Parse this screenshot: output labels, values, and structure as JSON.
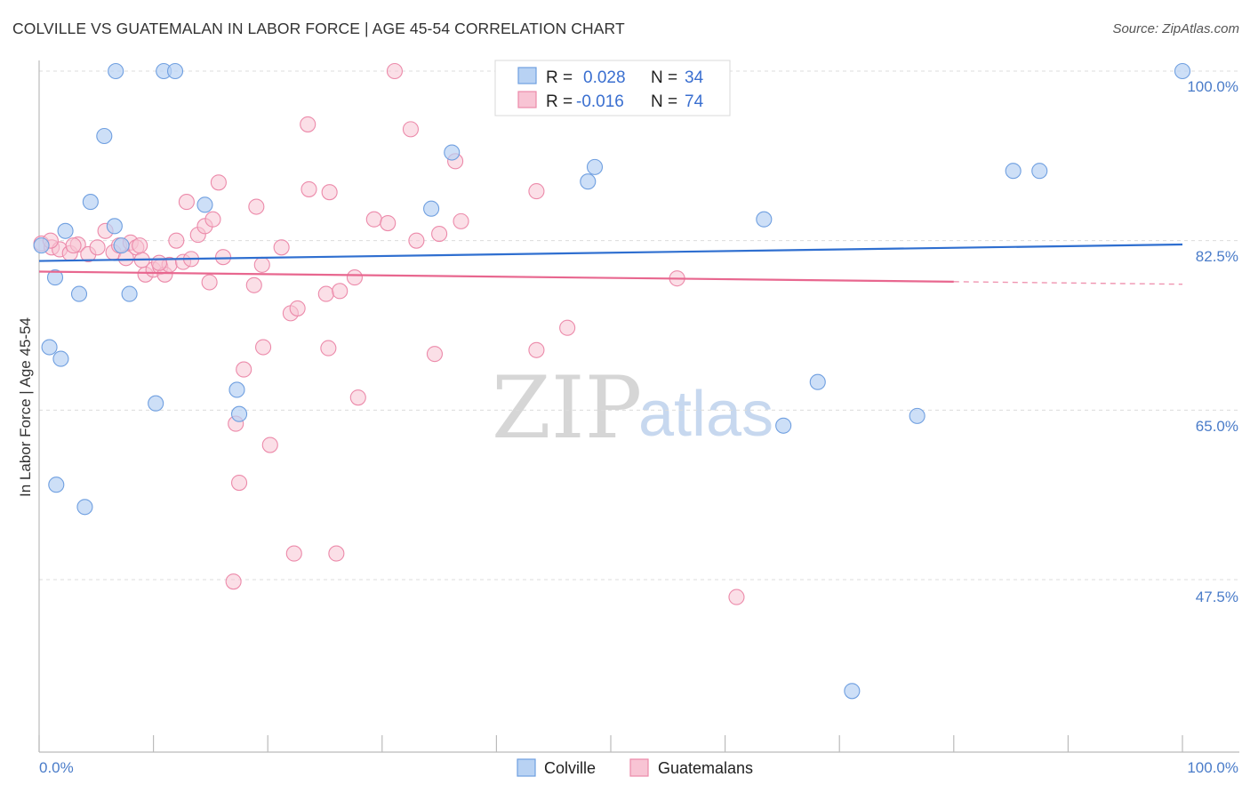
{
  "title": "COLVILLE VS GUATEMALAN IN LABOR FORCE | AGE 45-54 CORRELATION CHART",
  "source": "Source: ZipAtlas.com",
  "watermark": {
    "zip": "ZIP",
    "atlas": "atlas"
  },
  "colors": {
    "colville_fill": "#b8d2f3",
    "colville_stroke": "#6f9fe0",
    "colville_line": "#2f6fd0",
    "guatemalan_fill": "#f8c4d4",
    "guatemalan_stroke": "#ec8aaa",
    "guatemalan_line": "#e8678f",
    "axis_text": "#4a7cc9",
    "grid": "#dcdcdc"
  },
  "legend_box": {
    "rows": [
      {
        "r_label": "R =",
        "r_value": "0.028",
        "n_label": "N =",
        "n_value": "34"
      },
      {
        "r_label": "R =",
        "r_value": "-0.016",
        "n_label": "N =",
        "n_value": "74"
      }
    ]
  },
  "bottom_legend": [
    "Colville",
    "Guatemalans"
  ],
  "chart_data": {
    "type": "scatter",
    "xlabel": "",
    "ylabel": "In Labor Force | Age 45-54",
    "xlim": [
      0,
      100
    ],
    "ylim": [
      31,
      102
    ],
    "x_tick_labels": {
      "left": "0.0%",
      "right": "100.0%"
    },
    "y_ticks": [
      {
        "value": 100.0,
        "label": "100.0%"
      },
      {
        "value": 82.5,
        "label": "82.5%"
      },
      {
        "value": 65.0,
        "label": "65.0%"
      },
      {
        "value": 47.5,
        "label": "47.5%"
      }
    ],
    "series": [
      {
        "name": "Colville",
        "trend": {
          "x": [
            0,
            100
          ],
          "y": [
            80.4,
            82.1
          ]
        },
        "points": [
          [
            0.2,
            82.0
          ],
          [
            2.3,
            83.5
          ],
          [
            1.4,
            78.7
          ],
          [
            3.5,
            77.0
          ],
          [
            0.9,
            71.5
          ],
          [
            1.9,
            70.3
          ],
          [
            7.2,
            82.0
          ],
          [
            6.6,
            84.0
          ],
          [
            4.5,
            86.5
          ],
          [
            5.7,
            93.3
          ],
          [
            6.7,
            100.0
          ],
          [
            10.9,
            100.0
          ],
          [
            11.9,
            100.0
          ],
          [
            7.9,
            77.0
          ],
          [
            10.2,
            65.7
          ],
          [
            14.5,
            86.2
          ],
          [
            17.3,
            67.1
          ],
          [
            17.5,
            64.6
          ],
          [
            1.5,
            57.3
          ],
          [
            4.0,
            55.0
          ],
          [
            34.3,
            85.8
          ],
          [
            36.1,
            91.6
          ],
          [
            46.0,
            100.0
          ],
          [
            46.1,
            100.0
          ],
          [
            48.0,
            88.6
          ],
          [
            48.6,
            90.1
          ],
          [
            63.4,
            84.7
          ],
          [
            65.1,
            63.4
          ],
          [
            68.1,
            67.9
          ],
          [
            71.1,
            36.0
          ],
          [
            76.8,
            64.4
          ],
          [
            85.2,
            89.7
          ],
          [
            87.5,
            89.7
          ],
          [
            100.0,
            100.0
          ]
        ]
      },
      {
        "name": "Guatemalans",
        "trend": {
          "x": [
            0,
            100
          ],
          "y": [
            79.3,
            78.0
          ],
          "solid_until": 80
        },
        "points": [
          [
            0.2,
            82.2
          ],
          [
            1.1,
            81.8
          ],
          [
            1.8,
            81.6
          ],
          [
            2.7,
            81.2
          ],
          [
            3.4,
            82.1
          ],
          [
            4.3,
            81.1
          ],
          [
            5.1,
            81.8
          ],
          [
            5.8,
            83.5
          ],
          [
            6.5,
            81.3
          ],
          [
            7.0,
            82.0
          ],
          [
            7.6,
            80.7
          ],
          [
            8.0,
            82.3
          ],
          [
            8.5,
            81.8
          ],
          [
            9.0,
            80.5
          ],
          [
            9.3,
            79.0
          ],
          [
            10.0,
            79.5
          ],
          [
            10.6,
            79.8
          ],
          [
            11.0,
            79.0
          ],
          [
            11.4,
            80.0
          ],
          [
            12.0,
            82.5
          ],
          [
            12.6,
            80.3
          ],
          [
            13.3,
            80.6
          ],
          [
            13.9,
            83.1
          ],
          [
            14.5,
            84.0
          ],
          [
            14.9,
            78.2
          ],
          [
            12.9,
            86.5
          ],
          [
            15.2,
            84.7
          ],
          [
            15.7,
            88.5
          ],
          [
            16.1,
            80.8
          ],
          [
            17.2,
            63.6
          ],
          [
            17.5,
            57.5
          ],
          [
            17.9,
            69.2
          ],
          [
            18.8,
            77.9
          ],
          [
            19.0,
            86.0
          ],
          [
            19.5,
            80.0
          ],
          [
            17.0,
            47.3
          ],
          [
            19.6,
            71.5
          ],
          [
            20.2,
            61.4
          ],
          [
            21.2,
            81.8
          ],
          [
            22.0,
            75.0
          ],
          [
            22.3,
            50.2
          ],
          [
            22.6,
            75.5
          ],
          [
            23.5,
            94.5
          ],
          [
            23.6,
            87.8
          ],
          [
            25.1,
            77.0
          ],
          [
            25.3,
            71.4
          ],
          [
            25.4,
            87.5
          ],
          [
            26.0,
            50.2
          ],
          [
            26.3,
            77.3
          ],
          [
            27.6,
            78.7
          ],
          [
            27.9,
            66.3
          ],
          [
            29.3,
            84.7
          ],
          [
            30.5,
            84.3
          ],
          [
            31.1,
            100.0
          ],
          [
            32.5,
            94.0
          ],
          [
            33.0,
            82.5
          ],
          [
            34.6,
            70.8
          ],
          [
            35.0,
            83.2
          ],
          [
            36.4,
            90.7
          ],
          [
            36.9,
            84.5
          ],
          [
            43.3,
            100.0
          ],
          [
            43.5,
            87.6
          ],
          [
            43.5,
            71.2
          ],
          [
            46.2,
            73.5
          ],
          [
            52.2,
            100.0
          ],
          [
            56.5,
            100.0
          ],
          [
            55.8,
            78.6
          ],
          [
            61.0,
            45.7
          ],
          [
            56.9,
            100.0
          ],
          [
            44.0,
            100.0
          ],
          [
            1.0,
            82.5
          ],
          [
            3.0,
            82.0
          ],
          [
            10.5,
            80.2
          ],
          [
            8.8,
            82.0
          ]
        ]
      }
    ]
  }
}
